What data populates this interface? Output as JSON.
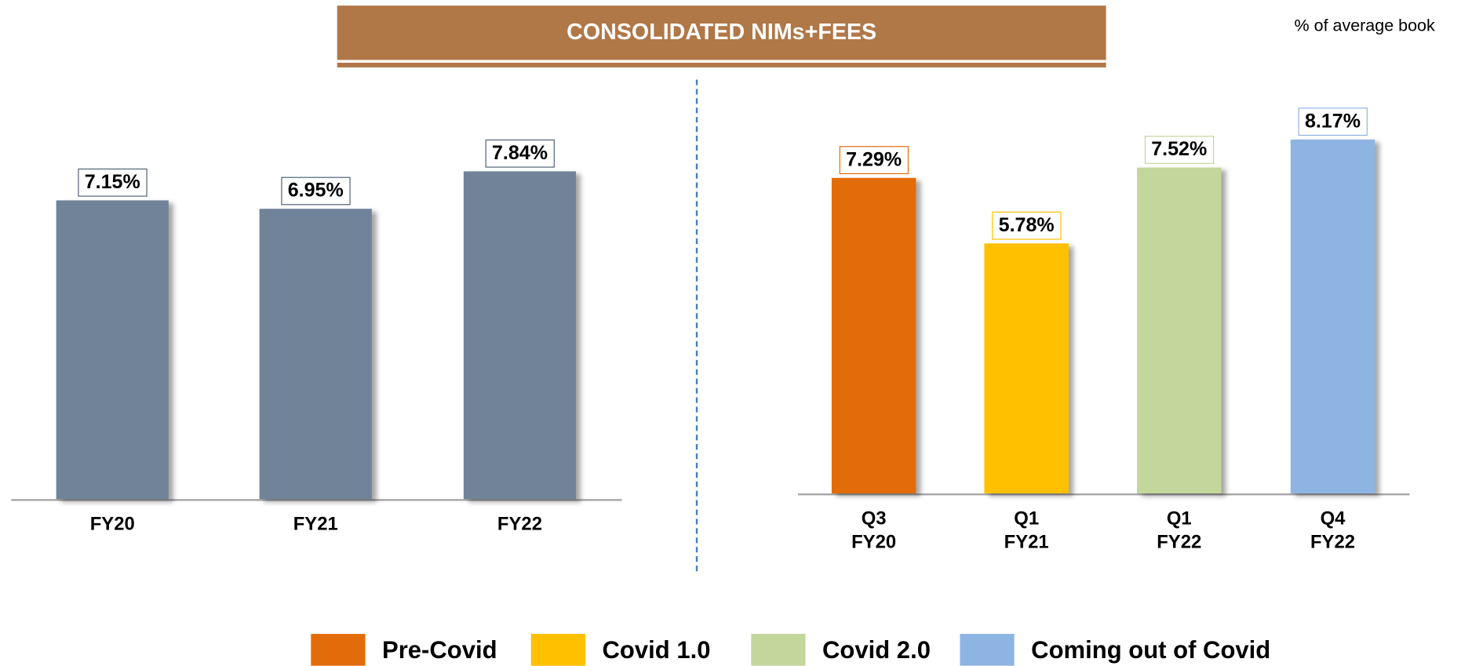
{
  "header": {
    "title": "CONSOLIDATED NIMs+FEES",
    "note": "% of average book"
  },
  "chart_data": [
    {
      "type": "bar",
      "categories": [
        "FY20",
        "FY21",
        "FY22"
      ],
      "values": [
        7.15,
        6.95,
        7.84
      ],
      "value_labels": [
        "7.15%",
        "6.95%",
        "7.84%"
      ],
      "color": "#718399",
      "ylim": [
        0,
        9
      ]
    },
    {
      "type": "bar",
      "categories": [
        "Q3 FY20",
        "Q1 FY21",
        "Q1 FY22",
        "Q4 FY22"
      ],
      "values": [
        7.29,
        5.78,
        7.52,
        8.17
      ],
      "value_labels": [
        "7.29%",
        "5.78%",
        "7.52%",
        "8.17%"
      ],
      "colors": [
        "#e36c0a",
        "#ffc000",
        "#c3d69b",
        "#8eb4e3"
      ],
      "ylim": [
        0,
        9
      ],
      "legend": [
        {
          "name": "Pre-Covid",
          "color": "#e36c0a"
        },
        {
          "name": "Covid 1.0",
          "color": "#ffc000"
        },
        {
          "name": "Covid 2.0",
          "color": "#c3d69b"
        },
        {
          "name": "Coming out of Covid",
          "color": "#8eb4e3"
        }
      ]
    }
  ]
}
